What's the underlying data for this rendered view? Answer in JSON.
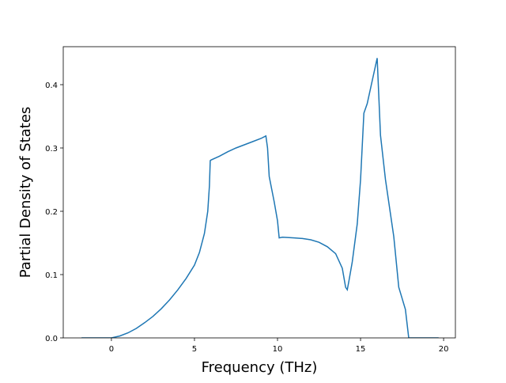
{
  "chart_data": {
    "type": "line",
    "x_label": "Frequency (THz)",
    "y_label": "Partial Density of States",
    "x": [
      -1.8,
      0,
      0.5,
      1,
      1.5,
      2,
      2.5,
      3,
      3.5,
      4,
      4.5,
      5,
      5.3,
      5.6,
      5.8,
      5.9,
      5.95,
      6,
      6.5,
      7,
      7.5,
      8,
      8.5,
      9,
      9.3,
      9.4,
      9.5,
      9.8,
      10,
      10.1,
      10.3,
      11,
      11.5,
      12,
      12.5,
      13,
      13.5,
      13.9,
      14,
      14.1,
      14.2,
      14.3,
      14.5,
      14.8,
      15,
      15.2,
      15.4,
      16,
      16.2,
      16.5,
      17,
      17.3,
      17.7,
      17.9,
      19.7
    ],
    "series": [
      {
        "color": "#1f77b4",
        "values": [
          0,
          0,
          0.003,
          0.008,
          0.015,
          0.024,
          0.034,
          0.046,
          0.06,
          0.076,
          0.094,
          0.115,
          0.135,
          0.165,
          0.2,
          0.24,
          0.28,
          0.281,
          0.287,
          0.294,
          0.3,
          0.305,
          0.31,
          0.315,
          0.319,
          0.3,
          0.255,
          0.215,
          0.185,
          0.158,
          0.159,
          0.158,
          0.157,
          0.155,
          0.151,
          0.144,
          0.133,
          0.11,
          0.095,
          0.08,
          0.076,
          0.09,
          0.12,
          0.18,
          0.25,
          0.355,
          0.37,
          0.442,
          0.32,
          0.25,
          0.16,
          0.08,
          0.045,
          0,
          0
        ]
      }
    ],
    "xlim": [
      -2.9,
      20.71
    ],
    "ylim": [
      0,
      0.46
    ],
    "xticks": [
      0,
      5,
      10,
      15,
      20
    ],
    "yticks": [
      0.0,
      0.1,
      0.2,
      0.3,
      0.4
    ]
  }
}
